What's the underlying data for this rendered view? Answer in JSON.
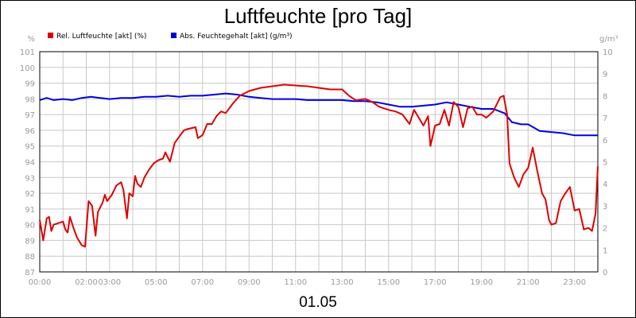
{
  "chart_data": {
    "type": "line",
    "title": "Luftfeuchte [pro Tag]",
    "subtitle": "01.05",
    "y_left": {
      "unit": "%",
      "range": [
        87,
        101
      ],
      "ticks": [
        "87",
        "88",
        "89",
        "90",
        "91",
        "92",
        "93",
        "94",
        "95",
        "96",
        "97",
        "98",
        "99",
        "100",
        "101"
      ]
    },
    "y_right": {
      "unit": "g/m³",
      "range": [
        0,
        10
      ],
      "ticks": [
        "0",
        "1",
        "2",
        "3",
        "4",
        "5",
        "6",
        "7",
        "8",
        "9",
        "10"
      ]
    },
    "x_axis": {
      "range_hours": [
        0,
        24
      ],
      "tick_labels": [
        "00:00",
        "02:00",
        "03:00",
        "05:00",
        "07:00",
        "09:00",
        "11:00",
        "13:00",
        "15:00",
        "17:00",
        "19:00",
        "21:00",
        "23:00"
      ],
      "tick_hours": [
        0,
        2,
        3,
        5,
        7,
        9,
        11,
        13,
        15,
        17,
        19,
        21,
        23
      ]
    },
    "grid": true,
    "legend_position": "top-left",
    "colors": {
      "rel": "#e00000",
      "abs": "#0000e0"
    },
    "series": [
      {
        "name": "Rel. Luftfeuchte [akt] (%)",
        "axis": "left",
        "points": [
          [
            0.0,
            90.3
          ],
          [
            0.15,
            89.0
          ],
          [
            0.3,
            90.4
          ],
          [
            0.4,
            90.5
          ],
          [
            0.5,
            89.6
          ],
          [
            0.6,
            90.0
          ],
          [
            0.8,
            90.1
          ],
          [
            1.0,
            90.2
          ],
          [
            1.1,
            89.7
          ],
          [
            1.2,
            89.5
          ],
          [
            1.3,
            90.5
          ],
          [
            1.45,
            89.8
          ],
          [
            1.6,
            89.2
          ],
          [
            1.8,
            88.7
          ],
          [
            1.95,
            88.6
          ],
          [
            2.1,
            91.5
          ],
          [
            2.25,
            91.2
          ],
          [
            2.4,
            89.3
          ],
          [
            2.5,
            90.8
          ],
          [
            2.7,
            91.4
          ],
          [
            2.8,
            91.9
          ],
          [
            2.9,
            91.5
          ],
          [
            3.1,
            91.9
          ],
          [
            3.3,
            92.5
          ],
          [
            3.5,
            92.7
          ],
          [
            3.6,
            92.2
          ],
          [
            3.75,
            90.4
          ],
          [
            3.85,
            92.0
          ],
          [
            4.0,
            91.8
          ],
          [
            4.1,
            93.1
          ],
          [
            4.2,
            92.6
          ],
          [
            4.35,
            92.4
          ],
          [
            4.5,
            93.0
          ],
          [
            4.7,
            93.5
          ],
          [
            4.9,
            93.9
          ],
          [
            5.1,
            94.1
          ],
          [
            5.3,
            94.2
          ],
          [
            5.4,
            94.6
          ],
          [
            5.6,
            94.0
          ],
          [
            5.8,
            95.2
          ],
          [
            6.0,
            95.6
          ],
          [
            6.2,
            96.0
          ],
          [
            6.4,
            96.1
          ],
          [
            6.7,
            96.2
          ],
          [
            6.8,
            95.5
          ],
          [
            7.0,
            95.7
          ],
          [
            7.2,
            96.4
          ],
          [
            7.4,
            96.4
          ],
          [
            7.6,
            96.9
          ],
          [
            7.8,
            97.2
          ],
          [
            8.0,
            97.1
          ],
          [
            8.3,
            97.7
          ],
          [
            8.6,
            98.2
          ],
          [
            9.0,
            98.5
          ],
          [
            9.5,
            98.7
          ],
          [
            10.0,
            98.8
          ],
          [
            10.5,
            98.9
          ],
          [
            11.0,
            98.85
          ],
          [
            11.5,
            98.8
          ],
          [
            12.0,
            98.7
          ],
          [
            12.5,
            98.6
          ],
          [
            13.0,
            98.6
          ],
          [
            13.3,
            98.2
          ],
          [
            13.6,
            97.9
          ],
          [
            14.0,
            98.0
          ],
          [
            14.3,
            97.8
          ],
          [
            14.6,
            97.5
          ],
          [
            15.0,
            97.3
          ],
          [
            15.3,
            97.2
          ],
          [
            15.6,
            97.0
          ],
          [
            15.9,
            96.4
          ],
          [
            16.1,
            97.3
          ],
          [
            16.3,
            96.8
          ],
          [
            16.5,
            96.3
          ],
          [
            16.7,
            96.9
          ],
          [
            16.8,
            95.0
          ],
          [
            17.0,
            96.3
          ],
          [
            17.2,
            96.4
          ],
          [
            17.4,
            97.3
          ],
          [
            17.6,
            96.3
          ],
          [
            17.8,
            97.8
          ],
          [
            18.0,
            97.5
          ],
          [
            18.2,
            96.2
          ],
          [
            18.4,
            97.4
          ],
          [
            18.6,
            97.5
          ],
          [
            18.8,
            97.0
          ],
          [
            19.0,
            97.0
          ],
          [
            19.2,
            96.8
          ],
          [
            19.5,
            97.2
          ],
          [
            19.8,
            98.1
          ],
          [
            19.95,
            98.2
          ],
          [
            20.1,
            97.0
          ],
          [
            20.2,
            93.9
          ],
          [
            20.4,
            93.0
          ],
          [
            20.6,
            92.4
          ],
          [
            20.8,
            93.2
          ],
          [
            21.0,
            93.6
          ],
          [
            21.2,
            94.9
          ],
          [
            21.4,
            93.4
          ],
          [
            21.6,
            92.0
          ],
          [
            21.75,
            91.6
          ],
          [
            21.9,
            90.3
          ],
          [
            22.0,
            90.0
          ],
          [
            22.2,
            90.1
          ],
          [
            22.4,
            91.5
          ],
          [
            22.6,
            92.0
          ],
          [
            22.8,
            92.4
          ],
          [
            23.0,
            90.9
          ],
          [
            23.2,
            91.0
          ],
          [
            23.4,
            89.7
          ],
          [
            23.6,
            89.8
          ],
          [
            23.75,
            89.6
          ],
          [
            23.9,
            90.7
          ],
          [
            24.0,
            93.7
          ]
        ]
      },
      {
        "name": "Abs. Feuchtegehalt [akt] (g/m³)",
        "axis": "right",
        "points": [
          [
            0.0,
            7.8
          ],
          [
            0.3,
            7.9
          ],
          [
            0.6,
            7.8
          ],
          [
            1.0,
            7.85
          ],
          [
            1.4,
            7.8
          ],
          [
            1.8,
            7.9
          ],
          [
            2.2,
            7.95
          ],
          [
            2.6,
            7.9
          ],
          [
            3.0,
            7.85
          ],
          [
            3.5,
            7.9
          ],
          [
            4.0,
            7.9
          ],
          [
            4.5,
            7.95
          ],
          [
            5.0,
            7.95
          ],
          [
            5.5,
            8.0
          ],
          [
            6.0,
            7.95
          ],
          [
            6.5,
            8.0
          ],
          [
            7.0,
            8.0
          ],
          [
            7.5,
            8.05
          ],
          [
            8.0,
            8.1
          ],
          [
            8.5,
            8.05
          ],
          [
            9.0,
            7.95
          ],
          [
            9.5,
            7.9
          ],
          [
            10.0,
            7.85
          ],
          [
            10.5,
            7.85
          ],
          [
            11.0,
            7.85
          ],
          [
            11.5,
            7.8
          ],
          [
            12.0,
            7.8
          ],
          [
            12.5,
            7.8
          ],
          [
            13.0,
            7.8
          ],
          [
            13.5,
            7.75
          ],
          [
            14.0,
            7.75
          ],
          [
            14.5,
            7.7
          ],
          [
            15.0,
            7.6
          ],
          [
            15.5,
            7.5
          ],
          [
            16.0,
            7.5
          ],
          [
            16.5,
            7.55
          ],
          [
            17.0,
            7.6
          ],
          [
            17.5,
            7.7
          ],
          [
            18.0,
            7.6
          ],
          [
            18.5,
            7.5
          ],
          [
            19.0,
            7.4
          ],
          [
            19.5,
            7.4
          ],
          [
            20.0,
            7.2
          ],
          [
            20.3,
            6.8
          ],
          [
            20.7,
            6.7
          ],
          [
            21.0,
            6.7
          ],
          [
            21.5,
            6.4
          ],
          [
            22.0,
            6.35
          ],
          [
            22.5,
            6.3
          ],
          [
            23.0,
            6.2
          ],
          [
            23.5,
            6.2
          ],
          [
            24.0,
            6.2
          ]
        ]
      }
    ]
  }
}
